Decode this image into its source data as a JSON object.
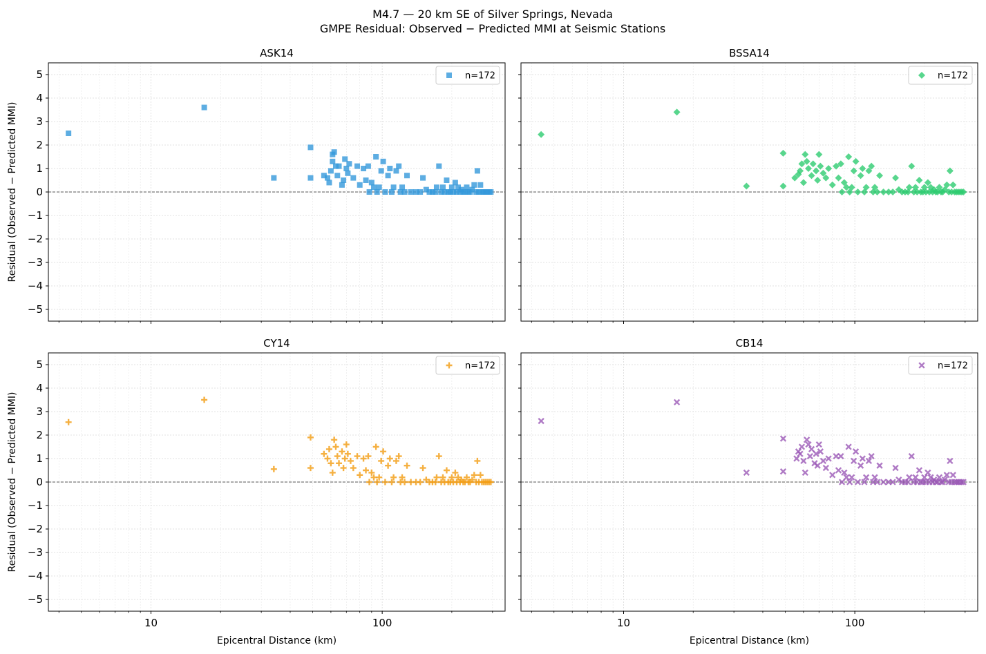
{
  "figure": {
    "title_line1": "M4.7 — 20 km SE of Silver Springs, Nevada",
    "title_line2": "GMPE Residual: Observed − Predicted MMI at Seismic Stations"
  },
  "chart_data": [
    {
      "type": "scatter",
      "title": "ASK14",
      "xlabel": "",
      "ylabel": "Residual (Observed − Predicted MMI)",
      "xscale": "log",
      "xlim": [
        3.6,
        340
      ],
      "ylim": [
        -5.5,
        5.5
      ],
      "x_ticks": [
        10,
        100
      ],
      "y_ticks": [
        -5,
        -4,
        -3,
        -2,
        -1,
        0,
        1,
        2,
        3,
        4,
        5
      ],
      "grid": true,
      "zero_line": 0,
      "legend": {
        "label": "n=172",
        "position": "top-right"
      },
      "color": "#3498db",
      "marker": "square",
      "points": [
        [
          4.4,
          2.5
        ],
        [
          17,
          3.6
        ],
        [
          34,
          0.6
        ],
        [
          49,
          1.9
        ],
        [
          49,
          0.6
        ],
        [
          56,
          0.7
        ],
        [
          58,
          0.6
        ],
        [
          59,
          0.4
        ],
        [
          60,
          0.9
        ],
        [
          61,
          1.3
        ],
        [
          61,
          1.6
        ],
        [
          62,
          1.7
        ],
        [
          63,
          1.1
        ],
        [
          64,
          0.7
        ],
        [
          65,
          1.1
        ],
        [
          67,
          0.3
        ],
        [
          68,
          0.5
        ],
        [
          69,
          1.4
        ],
        [
          70,
          1.0
        ],
        [
          71,
          0.8
        ],
        [
          72,
          1.2
        ],
        [
          75,
          0.6
        ],
        [
          78,
          1.1
        ],
        [
          80,
          0.3
        ],
        [
          83,
          1.0
        ],
        [
          85,
          0.5
        ],
        [
          87,
          1.1
        ],
        [
          88,
          0.0
        ],
        [
          90,
          0.4
        ],
        [
          92,
          0.2
        ],
        [
          94,
          1.5
        ],
        [
          95,
          0.0
        ],
        [
          97,
          0.2
        ],
        [
          99,
          0.9
        ],
        [
          101,
          1.3
        ],
        [
          103,
          0.0
        ],
        [
          106,
          0.7
        ],
        [
          108,
          1.0
        ],
        [
          110,
          0.0
        ],
        [
          112,
          0.2
        ],
        [
          115,
          0.9
        ],
        [
          118,
          1.1
        ],
        [
          120,
          0.0
        ],
        [
          122,
          0.2
        ],
        [
          125,
          0.0
        ],
        [
          128,
          0.7
        ],
        [
          133,
          0.0
        ],
        [
          140,
          0.0
        ],
        [
          146,
          0.0
        ],
        [
          150,
          0.6
        ],
        [
          155,
          0.1
        ],
        [
          160,
          0.0
        ],
        [
          165,
          0.0
        ],
        [
          170,
          0.0
        ],
        [
          172,
          0.2
        ],
        [
          176,
          1.1
        ],
        [
          180,
          0.0
        ],
        [
          183,
          0.2
        ],
        [
          186,
          0.0
        ],
        [
          190,
          0.5
        ],
        [
          193,
          0.0
        ],
        [
          197,
          0.0
        ],
        [
          200,
          0.2
        ],
        [
          203,
          0.0
        ],
        [
          207,
          0.4
        ],
        [
          210,
          0.0
        ],
        [
          213,
          0.2
        ],
        [
          217,
          0.0
        ],
        [
          220,
          0.1
        ],
        [
          224,
          0.0
        ],
        [
          228,
          0.0
        ],
        [
          232,
          0.2
        ],
        [
          236,
          0.0
        ],
        [
          240,
          0.0
        ],
        [
          245,
          0.1
        ],
        [
          250,
          0.3
        ],
        [
          255,
          0.0
        ],
        [
          258,
          0.9
        ],
        [
          262,
          0.0
        ],
        [
          266,
          0.3
        ],
        [
          270,
          0.0
        ],
        [
          275,
          0.0
        ],
        [
          280,
          0.0
        ],
        [
          285,
          0.0
        ],
        [
          290,
          0.0
        ],
        [
          295,
          0.0
        ]
      ]
    },
    {
      "type": "scatter",
      "title": "BSSA14",
      "xlabel": "",
      "ylabel": "",
      "xscale": "log",
      "xlim": [
        3.6,
        340
      ],
      "ylim": [
        -5.5,
        5.5
      ],
      "x_ticks": [
        10,
        100
      ],
      "y_ticks": [
        -5,
        -4,
        -3,
        -2,
        -1,
        0,
        1,
        2,
        3,
        4,
        5
      ],
      "grid": true,
      "zero_line": 0,
      "legend": {
        "label": "n=172",
        "position": "top-right"
      },
      "color": "#2ecc71",
      "marker": "diamond",
      "points": [
        [
          4.4,
          2.45
        ],
        [
          17,
          3.4
        ],
        [
          34,
          0.25
        ],
        [
          49,
          1.65
        ],
        [
          49,
          0.25
        ],
        [
          55,
          0.6
        ],
        [
          57,
          0.75
        ],
        [
          58,
          0.9
        ],
        [
          59,
          1.2
        ],
        [
          60,
          0.4
        ],
        [
          61,
          1.6
        ],
        [
          62,
          1.3
        ],
        [
          63,
          1.0
        ],
        [
          65,
          0.7
        ],
        [
          66,
          1.2
        ],
        [
          68,
          0.9
        ],
        [
          69,
          0.5
        ],
        [
          70,
          1.6
        ],
        [
          71,
          1.1
        ],
        [
          73,
          0.8
        ],
        [
          75,
          0.6
        ],
        [
          77,
          1.0
        ],
        [
          80,
          0.3
        ],
        [
          83,
          1.1
        ],
        [
          85,
          0.6
        ],
        [
          87,
          1.2
        ],
        [
          88,
          0.0
        ],
        [
          90,
          0.4
        ],
        [
          92,
          0.2
        ],
        [
          94,
          1.5
        ],
        [
          95,
          0.0
        ],
        [
          97,
          0.2
        ],
        [
          99,
          0.9
        ],
        [
          101,
          1.3
        ],
        [
          103,
          0.0
        ],
        [
          106,
          0.7
        ],
        [
          108,
          1.0
        ],
        [
          110,
          0.0
        ],
        [
          112,
          0.2
        ],
        [
          115,
          0.9
        ],
        [
          118,
          1.1
        ],
        [
          120,
          0.0
        ],
        [
          122,
          0.2
        ],
        [
          125,
          0.0
        ],
        [
          128,
          0.7
        ],
        [
          133,
          0.0
        ],
        [
          140,
          0.0
        ],
        [
          146,
          0.0
        ],
        [
          150,
          0.6
        ],
        [
          155,
          0.1
        ],
        [
          160,
          0.0
        ],
        [
          165,
          0.0
        ],
        [
          170,
          0.0
        ],
        [
          172,
          0.2
        ],
        [
          176,
          1.1
        ],
        [
          180,
          0.0
        ],
        [
          183,
          0.2
        ],
        [
          186,
          0.0
        ],
        [
          190,
          0.5
        ],
        [
          193,
          0.0
        ],
        [
          197,
          0.0
        ],
        [
          200,
          0.2
        ],
        [
          203,
          0.0
        ],
        [
          207,
          0.4
        ],
        [
          210,
          0.0
        ],
        [
          213,
          0.2
        ],
        [
          217,
          0.0
        ],
        [
          220,
          0.1
        ],
        [
          224,
          0.0
        ],
        [
          228,
          0.0
        ],
        [
          232,
          0.2
        ],
        [
          236,
          0.0
        ],
        [
          240,
          0.0
        ],
        [
          245,
          0.1
        ],
        [
          250,
          0.3
        ],
        [
          255,
          0.0
        ],
        [
          258,
          0.9
        ],
        [
          262,
          0.0
        ],
        [
          266,
          0.3
        ],
        [
          270,
          0.0
        ],
        [
          275,
          0.0
        ],
        [
          280,
          0.0
        ],
        [
          285,
          0.0
        ],
        [
          290,
          0.0
        ],
        [
          295,
          0.0
        ]
      ]
    },
    {
      "type": "scatter",
      "title": "CY14",
      "xlabel": "Epicentral Distance (km)",
      "ylabel": "Residual (Observed − Predicted MMI)",
      "xscale": "log",
      "xlim": [
        3.6,
        340
      ],
      "ylim": [
        -5.5,
        5.5
      ],
      "x_ticks": [
        10,
        100
      ],
      "y_ticks": [
        -5,
        -4,
        -3,
        -2,
        -1,
        0,
        1,
        2,
        3,
        4,
        5
      ],
      "grid": true,
      "zero_line": 0,
      "legend": {
        "label": "n=172",
        "position": "top-right"
      },
      "color": "#f39c12",
      "marker": "plus",
      "points": [
        [
          4.4,
          2.55
        ],
        [
          17,
          3.5
        ],
        [
          34,
          0.55
        ],
        [
          49,
          1.9
        ],
        [
          49,
          0.6
        ],
        [
          56,
          1.2
        ],
        [
          58,
          1.0
        ],
        [
          59,
          1.4
        ],
        [
          60,
          0.8
        ],
        [
          61,
          0.4
        ],
        [
          62,
          1.8
        ],
        [
          63,
          1.5
        ],
        [
          64,
          1.1
        ],
        [
          65,
          0.8
        ],
        [
          67,
          1.3
        ],
        [
          68,
          0.6
        ],
        [
          69,
          1.0
        ],
        [
          70,
          1.6
        ],
        [
          71,
          1.2
        ],
        [
          73,
          0.9
        ],
        [
          75,
          0.6
        ],
        [
          78,
          1.1
        ],
        [
          80,
          0.3
        ],
        [
          83,
          1.0
        ],
        [
          85,
          0.5
        ],
        [
          87,
          1.1
        ],
        [
          88,
          0.0
        ],
        [
          90,
          0.4
        ],
        [
          92,
          0.2
        ],
        [
          94,
          1.5
        ],
        [
          95,
          0.0
        ],
        [
          97,
          0.2
        ],
        [
          99,
          0.9
        ],
        [
          101,
          1.3
        ],
        [
          103,
          0.0
        ],
        [
          106,
          0.7
        ],
        [
          108,
          1.0
        ],
        [
          110,
          0.0
        ],
        [
          112,
          0.2
        ],
        [
          115,
          0.9
        ],
        [
          118,
          1.1
        ],
        [
          120,
          0.0
        ],
        [
          122,
          0.2
        ],
        [
          125,
          0.0
        ],
        [
          128,
          0.7
        ],
        [
          133,
          0.0
        ],
        [
          140,
          0.0
        ],
        [
          146,
          0.0
        ],
        [
          150,
          0.6
        ],
        [
          155,
          0.1
        ],
        [
          160,
          0.0
        ],
        [
          165,
          0.0
        ],
        [
          170,
          0.0
        ],
        [
          172,
          0.2
        ],
        [
          176,
          1.1
        ],
        [
          180,
          0.0
        ],
        [
          183,
          0.2
        ],
        [
          186,
          0.0
        ],
        [
          190,
          0.5
        ],
        [
          193,
          0.0
        ],
        [
          197,
          0.0
        ],
        [
          200,
          0.2
        ],
        [
          203,
          0.0
        ],
        [
          207,
          0.4
        ],
        [
          210,
          0.0
        ],
        [
          213,
          0.2
        ],
        [
          217,
          0.0
        ],
        [
          220,
          0.1
        ],
        [
          224,
          0.0
        ],
        [
          228,
          0.0
        ],
        [
          232,
          0.2
        ],
        [
          236,
          0.0
        ],
        [
          240,
          0.0
        ],
        [
          245,
          0.1
        ],
        [
          250,
          0.3
        ],
        [
          255,
          0.0
        ],
        [
          258,
          0.9
        ],
        [
          262,
          0.0
        ],
        [
          266,
          0.3
        ],
        [
          270,
          0.0
        ],
        [
          275,
          0.0
        ],
        [
          280,
          0.0
        ],
        [
          285,
          0.0
        ],
        [
          290,
          0.0
        ],
        [
          295,
          0.0
        ]
      ]
    },
    {
      "type": "scatter",
      "title": "CB14",
      "xlabel": "Epicentral Distance (km)",
      "ylabel": "",
      "xscale": "log",
      "xlim": [
        3.6,
        340
      ],
      "ylim": [
        -5.5,
        5.5
      ],
      "x_ticks": [
        10,
        100
      ],
      "y_ticks": [
        -5,
        -4,
        -3,
        -2,
        -1,
        0,
        1,
        2,
        3,
        4,
        5
      ],
      "grid": true,
      "zero_line": 0,
      "legend": {
        "label": "n=172",
        "position": "top-right"
      },
      "color": "#9b59b6",
      "marker": "x",
      "points": [
        [
          4.4,
          2.6
        ],
        [
          17,
          3.4
        ],
        [
          34,
          0.4
        ],
        [
          49,
          1.85
        ],
        [
          49,
          0.45
        ],
        [
          56,
          1.0
        ],
        [
          57,
          1.3
        ],
        [
          58,
          1.2
        ],
        [
          59,
          1.5
        ],
        [
          60,
          0.9
        ],
        [
          61,
          0.4
        ],
        [
          62,
          1.8
        ],
        [
          63,
          1.6
        ],
        [
          64,
          1.1
        ],
        [
          65,
          1.4
        ],
        [
          67,
          0.8
        ],
        [
          68,
          1.2
        ],
        [
          69,
          0.7
        ],
        [
          70,
          1.6
        ],
        [
          71,
          1.3
        ],
        [
          73,
          0.9
        ],
        [
          75,
          0.6
        ],
        [
          77,
          1.0
        ],
        [
          80,
          0.3
        ],
        [
          83,
          1.1
        ],
        [
          85,
          0.5
        ],
        [
          87,
          1.1
        ],
        [
          88,
          0.0
        ],
        [
          90,
          0.4
        ],
        [
          92,
          0.2
        ],
        [
          94,
          1.5
        ],
        [
          95,
          0.0
        ],
        [
          97,
          0.2
        ],
        [
          99,
          0.9
        ],
        [
          101,
          1.3
        ],
        [
          103,
          0.0
        ],
        [
          106,
          0.7
        ],
        [
          108,
          1.0
        ],
        [
          110,
          0.0
        ],
        [
          112,
          0.2
        ],
        [
          115,
          0.9
        ],
        [
          118,
          1.1
        ],
        [
          120,
          0.0
        ],
        [
          122,
          0.2
        ],
        [
          125,
          0.0
        ],
        [
          128,
          0.7
        ],
        [
          133,
          0.0
        ],
        [
          140,
          0.0
        ],
        [
          146,
          0.0
        ],
        [
          150,
          0.6
        ],
        [
          155,
          0.1
        ],
        [
          160,
          0.0
        ],
        [
          165,
          0.0
        ],
        [
          170,
          0.0
        ],
        [
          172,
          0.2
        ],
        [
          176,
          1.1
        ],
        [
          180,
          0.0
        ],
        [
          183,
          0.2
        ],
        [
          186,
          0.0
        ],
        [
          190,
          0.5
        ],
        [
          193,
          0.0
        ],
        [
          197,
          0.0
        ],
        [
          200,
          0.2
        ],
        [
          203,
          0.0
        ],
        [
          207,
          0.4
        ],
        [
          210,
          0.0
        ],
        [
          213,
          0.2
        ],
        [
          217,
          0.0
        ],
        [
          220,
          0.1
        ],
        [
          224,
          0.0
        ],
        [
          228,
          0.0
        ],
        [
          232,
          0.2
        ],
        [
          236,
          0.0
        ],
        [
          240,
          0.0
        ],
        [
          245,
          0.1
        ],
        [
          250,
          0.3
        ],
        [
          255,
          0.0
        ],
        [
          258,
          0.9
        ],
        [
          262,
          0.0
        ],
        [
          266,
          0.3
        ],
        [
          270,
          0.0
        ],
        [
          275,
          0.0
        ],
        [
          280,
          0.0
        ],
        [
          285,
          0.0
        ],
        [
          290,
          0.0
        ],
        [
          295,
          0.0
        ]
      ]
    }
  ]
}
